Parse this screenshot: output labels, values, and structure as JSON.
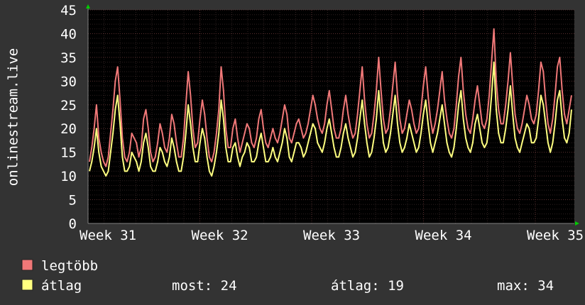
{
  "chart_data": {
    "type": "line",
    "ylabel": "onlinestream.live",
    "ylim": [
      0,
      45
    ],
    "yticks": [
      0,
      5,
      10,
      15,
      20,
      25,
      30,
      35,
      40,
      45
    ],
    "xticks": [
      "Week 31",
      "Week 32",
      "Week 33",
      "Week 34",
      "Week 35"
    ],
    "background": "#000000",
    "grid": true,
    "legend": "bottom-left",
    "series": [
      {
        "name": "legtöbb",
        "color": "#f07878",
        "values": [
          13,
          16,
          20,
          25,
          18,
          15,
          13,
          12,
          14,
          19,
          24,
          30,
          33,
          26,
          18,
          14,
          13,
          15,
          19,
          18,
          17,
          14,
          16,
          22,
          24,
          20,
          15,
          13,
          14,
          17,
          21,
          19,
          16,
          15,
          18,
          23,
          21,
          17,
          14,
          14,
          18,
          25,
          32,
          27,
          20,
          16,
          17,
          22,
          26,
          23,
          18,
          14,
          13,
          15,
          19,
          24,
          33,
          28,
          20,
          16,
          16,
          20,
          22,
          18,
          15,
          17,
          19,
          21,
          20,
          17,
          16,
          18,
          22,
          24,
          20,
          17,
          16,
          18,
          20,
          18,
          17,
          19,
          22,
          25,
          23,
          18,
          17,
          19,
          21,
          22,
          20,
          18,
          19,
          21,
          24,
          27,
          25,
          22,
          20,
          19,
          21,
          25,
          28,
          24,
          20,
          18,
          18,
          20,
          24,
          27,
          23,
          20,
          18,
          19,
          23,
          28,
          33,
          26,
          21,
          18,
          19,
          23,
          28,
          35,
          28,
          22,
          19,
          20,
          24,
          29,
          34,
          27,
          22,
          19,
          20,
          23,
          26,
          24,
          21,
          19,
          20,
          24,
          29,
          33,
          27,
          22,
          19,
          21,
          24,
          28,
          32,
          26,
          22,
          19,
          18,
          20,
          25,
          31,
          35,
          28,
          23,
          20,
          19,
          22,
          26,
          29,
          25,
          21,
          20,
          22,
          27,
          34,
          41,
          30,
          24,
          21,
          21,
          25,
          30,
          36,
          29,
          23,
          20,
          19,
          21,
          24,
          27,
          25,
          22,
          21,
          23,
          28,
          34,
          32,
          26,
          21,
          19,
          22,
          27,
          33,
          35,
          28,
          23,
          21,
          24,
          27
        ]
      },
      {
        "name": "átlag",
        "color": "#ffff80",
        "values": [
          11,
          13,
          16,
          20,
          15,
          12,
          11,
          10,
          11,
          15,
          19,
          24,
          27,
          21,
          14,
          11,
          11,
          12,
          15,
          14,
          13,
          11,
          13,
          17,
          19,
          16,
          12,
          11,
          11,
          13,
          16,
          15,
          13,
          12,
          14,
          18,
          16,
          13,
          11,
          11,
          14,
          19,
          25,
          21,
          16,
          13,
          13,
          17,
          20,
          18,
          14,
          11,
          10,
          12,
          15,
          19,
          26,
          22,
          16,
          13,
          13,
          16,
          17,
          14,
          12,
          14,
          15,
          17,
          16,
          13,
          13,
          14,
          17,
          19,
          16,
          13,
          13,
          14,
          16,
          14,
          13,
          15,
          17,
          20,
          18,
          14,
          13,
          15,
          17,
          17,
          16,
          14,
          15,
          17,
          19,
          21,
          20,
          17,
          16,
          15,
          17,
          20,
          22,
          19,
          16,
          14,
          14,
          16,
          19,
          21,
          18,
          16,
          14,
          15,
          18,
          22,
          26,
          21,
          17,
          14,
          15,
          18,
          22,
          28,
          22,
          17,
          15,
          16,
          19,
          23,
          27,
          21,
          17,
          15,
          16,
          18,
          21,
          19,
          17,
          15,
          16,
          19,
          23,
          26,
          21,
          17,
          15,
          17,
          19,
          22,
          25,
          21,
          17,
          15,
          14,
          16,
          20,
          25,
          28,
          22,
          18,
          16,
          15,
          17,
          21,
          23,
          20,
          17,
          16,
          17,
          21,
          27,
          34,
          24,
          19,
          17,
          17,
          20,
          24,
          29,
          23,
          18,
          16,
          15,
          17,
          19,
          21,
          20,
          17,
          17,
          18,
          22,
          27,
          25,
          21,
          17,
          15,
          17,
          21,
          26,
          28,
          22,
          18,
          17,
          19,
          24
        ]
      }
    ]
  },
  "legend": {
    "items": [
      {
        "label": "legtöbb",
        "color": "#f07878"
      },
      {
        "label": "átlag",
        "color": "#ffff80"
      }
    ],
    "stats": {
      "most": "most: 24",
      "atlag": "átlag: 19",
      "max": "max: 34"
    }
  }
}
